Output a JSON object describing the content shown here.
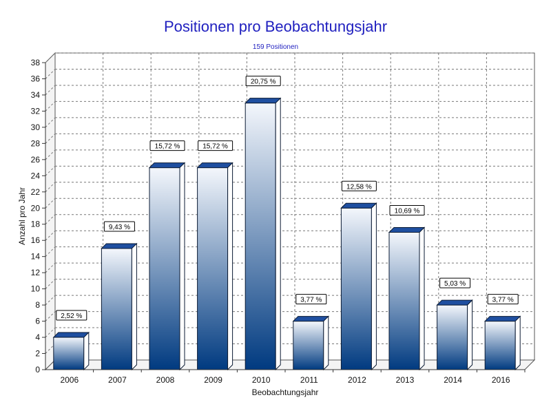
{
  "chart_data": {
    "type": "bar",
    "title": "Positionen pro Beobachtungsjahr",
    "subtitle": "159 Positionen",
    "xlabel": "Beobachtungsjahr",
    "ylabel": "Anzahl pro Jahr",
    "categories": [
      "2006",
      "2007",
      "2008",
      "2009",
      "2010",
      "2011",
      "2012",
      "2013",
      "2014",
      "2016"
    ],
    "values": [
      4,
      15,
      25,
      25,
      33,
      6,
      20,
      17,
      8,
      6
    ],
    "data_labels": [
      "2,52 %",
      "9,43 %",
      "15,72 %",
      "15,72 %",
      "20,75 %",
      "3,77 %",
      "12,58 %",
      "10,69 %",
      "5,03 %",
      "3,77 %"
    ],
    "ylim": [
      0,
      38
    ],
    "yticks": [
      0,
      2,
      4,
      6,
      8,
      10,
      12,
      14,
      16,
      18,
      20,
      22,
      24,
      26,
      28,
      30,
      32,
      34,
      36,
      38
    ],
    "grid": true,
    "legend": "none",
    "colors": {
      "bar_top": "#f4f7fc",
      "bar_bottom": "#003a80",
      "title": "#1f1fbf"
    }
  }
}
